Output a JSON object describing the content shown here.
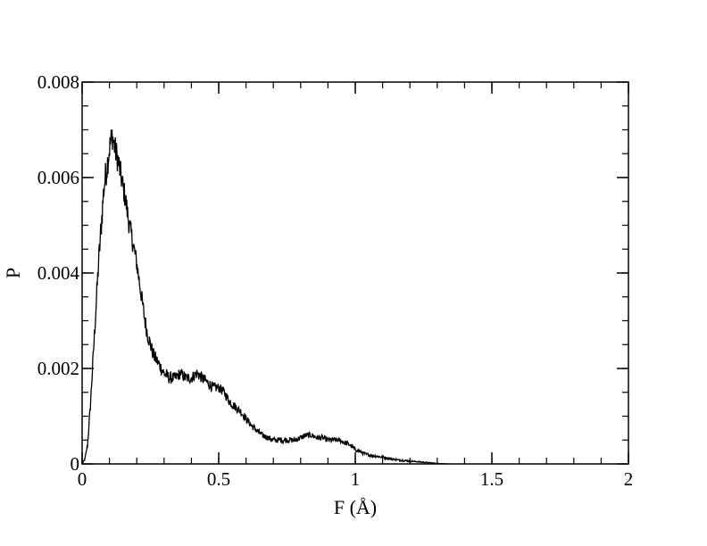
{
  "chart_data": {
    "type": "line",
    "title": "",
    "xlabel": "F (Å)",
    "ylabel": "P",
    "xlim": [
      0,
      2
    ],
    "ylim": [
      0,
      0.008
    ],
    "x_ticks": [
      {
        "value": 0,
        "label": "0"
      },
      {
        "value": 0.5,
        "label": "0.5"
      },
      {
        "value": 1,
        "label": "1"
      },
      {
        "value": 1.5,
        "label": "1.5"
      },
      {
        "value": 2,
        "label": "2"
      }
    ],
    "y_ticks": [
      {
        "value": 0,
        "label": "0"
      },
      {
        "value": 0.002,
        "label": "0.002"
      },
      {
        "value": 0.004,
        "label": "0.004"
      },
      {
        "value": 0.006,
        "label": "0.006"
      },
      {
        "value": 0.008,
        "label": "0.008"
      }
    ],
    "x_minor_step": 0.1,
    "y_minor_step": 0.0005,
    "grid": false,
    "legend": "none",
    "line_color": "#000000",
    "series": [
      {
        "x": [
          0,
          0.01,
          0.02,
          0.03,
          0.04,
          0.05,
          0.06,
          0.07,
          0.08,
          0.09,
          0.1,
          0.11,
          0.12,
          0.13,
          0.14,
          0.15,
          0.16,
          0.17,
          0.18,
          0.19,
          0.2,
          0.21,
          0.22,
          0.23,
          0.24,
          0.25,
          0.26,
          0.27,
          0.28,
          0.29,
          0.3,
          0.32,
          0.34,
          0.36,
          0.38,
          0.4,
          0.42,
          0.44,
          0.46,
          0.48,
          0.5,
          0.52,
          0.54,
          0.56,
          0.58,
          0.6,
          0.62,
          0.64,
          0.66,
          0.68,
          0.7,
          0.72,
          0.74,
          0.76,
          0.78,
          0.8,
          0.82,
          0.84,
          0.86,
          0.88,
          0.9,
          0.92,
          0.94,
          0.96,
          0.98,
          1.0,
          1.02,
          1.04,
          1.06,
          1.08,
          1.1,
          1.12,
          1.14,
          1.16,
          1.18,
          1.2,
          1.22,
          1.24,
          1.26,
          1.28,
          1.3,
          1.32,
          1.34
        ],
        "values": [
          0,
          0.0001,
          0.0004,
          0.0012,
          0.0022,
          0.0032,
          0.0042,
          0.005,
          0.0058,
          0.0062,
          0.0066,
          0.0069,
          0.0066,
          0.0064,
          0.0061,
          0.0058,
          0.0055,
          0.0051,
          0.0048,
          0.0045,
          0.0042,
          0.0038,
          0.0034,
          0.003,
          0.0027,
          0.0025,
          0.0023,
          0.0022,
          0.0021,
          0.002,
          0.0019,
          0.0018,
          0.0018,
          0.0019,
          0.0018,
          0.0018,
          0.0019,
          0.0018,
          0.0017,
          0.0016,
          0.0016,
          0.0015,
          0.0013,
          0.0012,
          0.0011,
          0.00095,
          0.0008,
          0.0007,
          0.0006,
          0.00055,
          0.0005,
          0.0005,
          0.0005,
          0.0005,
          0.0005,
          0.00055,
          0.0006,
          0.0006,
          0.00055,
          0.00055,
          0.0005,
          0.0005,
          0.0005,
          0.00045,
          0.0004,
          0.0003,
          0.00025,
          0.0002,
          0.00018,
          0.00016,
          0.00014,
          0.00012,
          0.0001,
          8e-05,
          7e-05,
          6e-05,
          5e-05,
          4e-05,
          3e-05,
          2e-05,
          1e-05,
          5e-06,
          0
        ],
        "noise": [
          0,
          2e-05,
          5e-05,
          0.0001,
          0.00015,
          0.0002,
          0.00025,
          0.0003,
          0.00032,
          0.00032,
          0.0003,
          0.0003,
          0.0003,
          0.0003,
          0.00028,
          0.00026,
          0.00025,
          0.00024,
          0.00023,
          0.00022,
          0.0002,
          0.0002,
          0.00019,
          0.00018,
          0.00017,
          0.00016,
          0.00015,
          0.00015,
          0.00014,
          0.00014,
          0.00013,
          0.00013,
          0.00012,
          0.00012,
          0.00012,
          0.00012,
          0.00012,
          0.00012,
          0.00011,
          0.00011,
          0.0001,
          0.0001,
          0.0001,
          9e-05,
          9e-05,
          8e-05,
          7e-05,
          7e-05,
          6e-05,
          6e-05,
          6e-05,
          6e-05,
          6e-05,
          6e-05,
          6e-05,
          6e-05,
          6e-05,
          6e-05,
          6e-05,
          6e-05,
          6e-05,
          6e-05,
          5e-05,
          5e-05,
          5e-05,
          4e-05,
          4e-05,
          3e-05,
          3e-05,
          3e-05,
          3e-05,
          2e-05,
          2e-05,
          2e-05,
          2e-05,
          2e-05,
          1e-05,
          1e-05,
          1e-05,
          1e-05,
          5e-06,
          3e-06,
          0
        ]
      }
    ]
  }
}
